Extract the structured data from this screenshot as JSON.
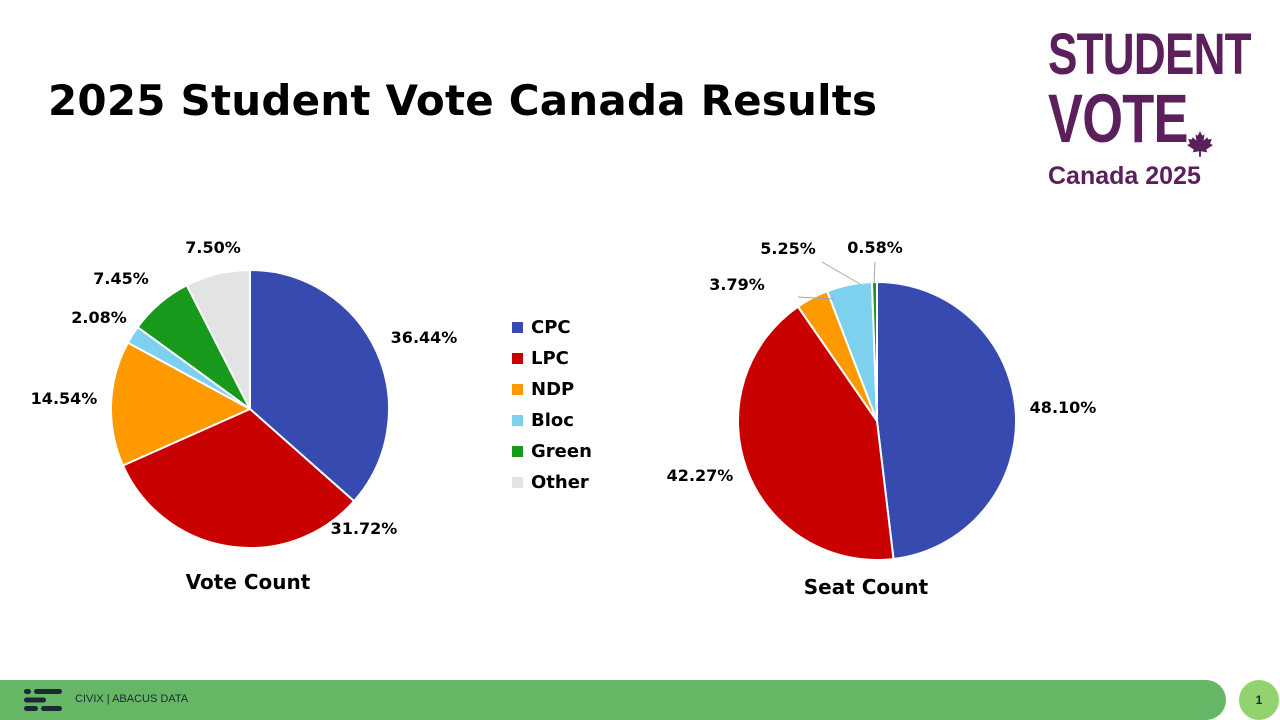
{
  "slide": {
    "title": "2025 Student Vote Canada Results",
    "page_number": "1"
  },
  "logo": {
    "line1": "STUDENT",
    "line2": "VOTE",
    "line3": "Canada 2025",
    "color": "#5b1f5c",
    "icon": "maple-leaf-icon"
  },
  "footer": {
    "text": "CIVIX | ABACUS DATA",
    "bar_color": "#66b765",
    "page_circle_color": "#93d36f"
  },
  "legend": {
    "placement": "center",
    "items": [
      {
        "label": "CPC",
        "color": "#364ab0"
      },
      {
        "label": "LPC",
        "color": "#c80000"
      },
      {
        "label": "NDP",
        "color": "#ff9900"
      },
      {
        "label": "Bloc",
        "color": "#7dd1ef"
      },
      {
        "label": "Green",
        "color": "#17991b"
      },
      {
        "label": "Other",
        "color": "#e2e4e4"
      }
    ]
  },
  "chart_data": [
    {
      "type": "pie",
      "title": "Vote Count",
      "categories": [
        "CPC",
        "LPC",
        "NDP",
        "Bloc",
        "Green",
        "Other"
      ],
      "values": [
        36.44,
        31.72,
        14.54,
        2.08,
        7.45,
        7.5
      ],
      "labels": [
        "36.44%",
        "31.72%",
        "14.54%",
        "2.08%",
        "7.45%",
        "7.50%"
      ],
      "start": "12 o'clock, clockwise"
    },
    {
      "type": "pie",
      "title": "Seat Count",
      "categories": [
        "CPC",
        "LPC",
        "NDP",
        "Bloc",
        "Green",
        "Other"
      ],
      "values": [
        48.1,
        42.27,
        3.79,
        5.25,
        0.58,
        0
      ],
      "labels": [
        "48.10%",
        "42.27%",
        "3.79%",
        "5.25%",
        "0.58%",
        ""
      ],
      "start": "12 o'clock, clockwise"
    }
  ]
}
